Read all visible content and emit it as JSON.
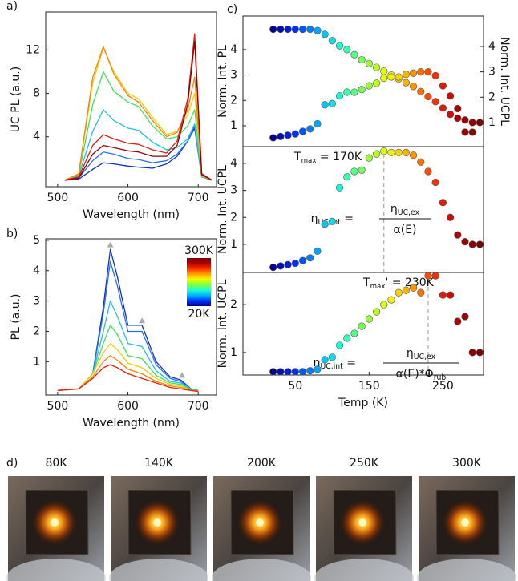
{
  "chart_data": [
    {
      "type": "line",
      "panel_label": "a)",
      "ylabel": "UC PL (a.u.)",
      "xlabel": "Wavelength (nm)",
      "x": [
        510,
        530,
        550,
        565,
        580,
        600,
        615,
        635,
        655,
        670,
        685,
        695,
        705,
        720
      ],
      "series": [
        {
          "color": "#1030c0",
          "values": [
            0,
            0.1,
            1.0,
            1.6,
            1.5,
            1.3,
            1.2,
            1.1,
            1.5,
            2.2,
            3.6,
            4.8,
            0.3,
            0
          ]
        },
        {
          "color": "#2070ff",
          "values": [
            0,
            0.2,
            1.8,
            2.6,
            2.4,
            2.0,
            1.9,
            1.6,
            1.8,
            2.4,
            3.6,
            5.0,
            0.3,
            0
          ]
        },
        {
          "color": "#20c0e0",
          "values": [
            0,
            0.4,
            4.5,
            6.5,
            5.5,
            4.8,
            4.6,
            3.5,
            2.8,
            3.0,
            3.8,
            5.2,
            0.3,
            0
          ]
        },
        {
          "color": "#40e060",
          "values": [
            0,
            0.5,
            7,
            10,
            8.2,
            7.2,
            6.8,
            5.0,
            3.8,
            4.0,
            5,
            6.5,
            0.4,
            0
          ]
        },
        {
          "color": "#f0d000",
          "values": [
            0,
            0.6,
            9,
            12.2,
            10,
            8.0,
            7.5,
            5.8,
            4.2,
            4.5,
            6,
            8,
            0.4,
            0
          ]
        },
        {
          "color": "#ff8000",
          "values": [
            0,
            0.6,
            9.5,
            12.3,
            9.8,
            7.8,
            7.2,
            5.5,
            4.0,
            4.4,
            6.5,
            9.5,
            0.5,
            0
          ]
        },
        {
          "color": "#e02010",
          "values": [
            0,
            0.3,
            3.2,
            4.2,
            3.8,
            3.4,
            3.3,
            2.8,
            2.5,
            3.6,
            7.5,
            13.5,
            0.6,
            0
          ]
        },
        {
          "color": "#900000",
          "values": [
            0,
            0.2,
            2.4,
            3.2,
            3.0,
            2.7,
            2.6,
            2.2,
            2.2,
            3.2,
            7,
            12.8,
            0.5,
            0
          ]
        }
      ],
      "xlim": [
        483,
        726
      ],
      "ylim": [
        -0.6,
        15.5
      ],
      "xticks": [
        500,
        600,
        700
      ],
      "yticks": [
        4,
        8,
        12
      ]
    },
    {
      "type": "line",
      "panel_label": "b)",
      "ylabel": "PL (a.u.)",
      "xlabel": "Wavelength (nm)",
      "x": [
        500,
        530,
        550,
        565,
        575,
        585,
        600,
        620,
        640,
        660,
        675,
        690,
        700
      ],
      "series": [
        {
          "color": "#1030c0",
          "values": [
            0.05,
            0.1,
            0.6,
            2.8,
            4.7,
            3.8,
            2.2,
            2.2,
            1.0,
            0.5,
            0.4,
            0.1,
            0.05
          ]
        },
        {
          "color": "#2070ff",
          "values": [
            0.05,
            0.1,
            0.6,
            2.6,
            4.3,
            3.5,
            2.0,
            2.0,
            0.9,
            0.45,
            0.35,
            0.1,
            0.05
          ]
        },
        {
          "color": "#20c0e0",
          "values": [
            0.05,
            0.1,
            0.6,
            2.0,
            3.0,
            2.5,
            1.6,
            1.5,
            0.7,
            0.35,
            0.3,
            0.1,
            0.05
          ]
        },
        {
          "color": "#40e060",
          "values": [
            0.05,
            0.1,
            0.6,
            1.6,
            2.2,
            1.9,
            1.2,
            1.1,
            0.55,
            0.3,
            0.25,
            0.08,
            0.03
          ]
        },
        {
          "color": "#f0d000",
          "values": [
            0.05,
            0.1,
            0.6,
            1.3,
            1.6,
            1.4,
            0.95,
            0.8,
            0.45,
            0.25,
            0.2,
            0.06,
            0.03
          ]
        },
        {
          "color": "#ff8000",
          "values": [
            0.05,
            0.1,
            0.5,
            1.0,
            1.2,
            1.05,
            0.75,
            0.6,
            0.35,
            0.2,
            0.15,
            0.05,
            0.02
          ]
        },
        {
          "color": "#e02010",
          "values": [
            0.05,
            0.1,
            0.45,
            0.8,
            0.9,
            0.8,
            0.6,
            0.45,
            0.3,
            0.15,
            0.1,
            0.05,
            0.02
          ]
        }
      ],
      "markers": {
        "color": "#aaaaaa",
        "x": [
          575,
          620,
          677
        ],
        "y": [
          4.85,
          2.35,
          0.55
        ]
      },
      "colorbar": {
        "top_label": "300K",
        "bottom_label": "20K"
      },
      "colormap": [
        "#00008f",
        "#0030ff",
        "#00b0ff",
        "#20ffd0",
        "#80ff40",
        "#f0ff00",
        "#ffa000",
        "#ff3000",
        "#b00000",
        "#7a0000"
      ],
      "xlim": [
        483,
        726
      ],
      "ylim": [
        -0.1,
        5.05
      ],
      "xticks": [
        500,
        600,
        700
      ],
      "yticks": [
        1,
        2,
        3,
        4,
        5
      ]
    },
    {
      "type": "scatter",
      "panel_label": "c)",
      "ylabel": "Norm. Int. PL",
      "ylabel_color": "#a080f0",
      "y2label": "Norm. Int. UCPL",
      "y2label_color": "#d42020",
      "x": [
        20,
        30,
        40,
        50,
        60,
        70,
        80,
        90,
        100,
        110,
        120,
        130,
        140,
        150,
        160,
        170,
        180,
        190,
        200,
        210,
        220,
        230,
        240,
        250,
        260,
        270,
        280,
        290,
        300
      ],
      "colormap": [
        "#00008f",
        "#0030ff",
        "#00b0ff",
        "#20ffd0",
        "#80ff40",
        "#f0ff00",
        "#ffa000",
        "#ff3000",
        "#b00000",
        "#7a0000"
      ],
      "series": [
        {
          "values": [
            4.8,
            4.8,
            4.8,
            4.8,
            4.8,
            4.8,
            4.75,
            4.6,
            4.35,
            4.15,
            4.0,
            3.8,
            3.6,
            3.45,
            3.3,
            3.15,
            3.0,
            2.85,
            2.7,
            2.55,
            2.35,
            2.15,
            1.95,
            1.7,
            1.45,
            1.3,
            0.75,
            0.75,
            null
          ]
        },
        {
          "axis": "y2",
          "values": [
            0.4,
            0.45,
            0.5,
            0.55,
            0.65,
            0.75,
            0.95,
            1.7,
            1.75,
            2.05,
            2.2,
            2.2,
            2.3,
            2.45,
            2.55,
            2.75,
            2.8,
            2.8,
            2.9,
            2.95,
            3.0,
            3.0,
            2.85,
            2.45,
            2.05,
            1.55,
            1.1,
            1.0,
            1.0
          ]
        }
      ],
      "xlim": [
        -21,
        305
      ],
      "ylim": [
        0.18,
        5.32
      ],
      "yticks": [
        1,
        2,
        3,
        4
      ],
      "y2lim": [
        0.05,
        5.2
      ],
      "y2ticks": [
        1,
        2,
        3,
        4
      ]
    },
    {
      "type": "scatter",
      "ylabel": "Norm. Int. UCPL",
      "x": [
        20,
        30,
        40,
        50,
        60,
        70,
        80,
        90,
        100,
        110,
        120,
        130,
        140,
        150,
        160,
        170,
        180,
        190,
        200,
        210,
        220,
        230,
        240,
        250,
        260,
        270,
        280,
        290,
        300
      ],
      "colormap": [
        "#00008f",
        "#0030ff",
        "#00b0ff",
        "#20ffd0",
        "#80ff40",
        "#f0ff00",
        "#ffa000",
        "#ff3000",
        "#b00000",
        "#7a0000"
      ],
      "series": [
        {
          "values": [
            0.15,
            0.2,
            0.25,
            0.3,
            0.4,
            0.5,
            0.75,
            1.75,
            1.85,
            3.1,
            3.5,
            3.7,
            3.75,
            4.2,
            4.35,
            4.45,
            4.4,
            4.4,
            4.4,
            4.3,
            4.05,
            3.7,
            3.3,
            2.55,
            2.0,
            1.35,
            1.1,
            1.0,
            1.0
          ]
        }
      ],
      "vline": 170,
      "annotation": [
        {
          "text": "T"
        },
        {
          "text": "max",
          "sub": true
        },
        {
          "text": " = 170K"
        }
      ],
      "formula": {
        "lhs": [
          {
            "text": "η"
          },
          {
            "text": "UC,int",
            "sub": true
          },
          {
            "text": " ="
          }
        ],
        "num": [
          {
            "text": "η"
          },
          {
            "text": "UC,ex",
            "sub": true
          }
        ],
        "den": [
          {
            "text": "α(E)"
          }
        ]
      },
      "xlim": [
        -21,
        305
      ],
      "ylim": [
        -0.04,
        4.62
      ],
      "yticks": [
        1,
        2,
        3,
        4
      ]
    },
    {
      "type": "scatter",
      "ylabel": "Norm. Int. UCPL",
      "xlabel": "Temp (K)",
      "x": [
        20,
        30,
        40,
        50,
        60,
        70,
        80,
        90,
        100,
        110,
        120,
        130,
        140,
        150,
        160,
        170,
        180,
        190,
        200,
        210,
        220,
        230,
        240,
        250,
        260,
        270,
        280,
        290,
        300
      ],
      "colormap": [
        "#00008f",
        "#0030ff",
        "#00b0ff",
        "#20ffd0",
        "#80ff40",
        "#f0ff00",
        "#ffa000",
        "#ff3000",
        "#b00000",
        "#7a0000"
      ],
      "series": [
        {
          "values": [
            0.6,
            0.6,
            0.6,
            0.6,
            0.6,
            0.62,
            0.65,
            0.85,
            0.9,
            1.15,
            1.3,
            1.4,
            1.55,
            1.7,
            1.85,
            2.0,
            2.1,
            2.25,
            2.3,
            2.35,
            2.25,
            2.6,
            2.6,
            2.2,
            2.2,
            1.65,
            1.75,
            1.0,
            1.0
          ]
        }
      ],
      "vline": 230,
      "annotation": [
        {
          "text": "T"
        },
        {
          "text": "max",
          "sub": true
        },
        {
          "text": "' = 230K"
        }
      ],
      "formula": {
        "lhs": [
          {
            "text": "η"
          },
          {
            "text": "UC,int",
            "sub": true
          },
          {
            "text": " ="
          }
        ],
        "num": [
          {
            "text": "η"
          },
          {
            "text": "UC,ex",
            "sub": true
          }
        ],
        "den": [
          {
            "text": "α(E)*Φ"
          },
          {
            "text": "rub",
            "sub": true
          }
        ]
      },
      "xlim": [
        -21,
        305
      ],
      "ylim": [
        0.53,
        2.67
      ],
      "xticks": [
        50,
        150,
        250
      ],
      "yticks": [
        1,
        2
      ]
    }
  ],
  "photos": {
    "panel_label": "d)",
    "items": [
      {
        "label": "80K",
        "color": "#1a5cff"
      },
      {
        "label": "140K",
        "color": "#30e0d0"
      },
      {
        "label": "200K",
        "color": "#f0e020"
      },
      {
        "label": "250K",
        "color": "#ff4020"
      },
      {
        "label": "300K",
        "color": "#8a0a0a"
      }
    ]
  }
}
